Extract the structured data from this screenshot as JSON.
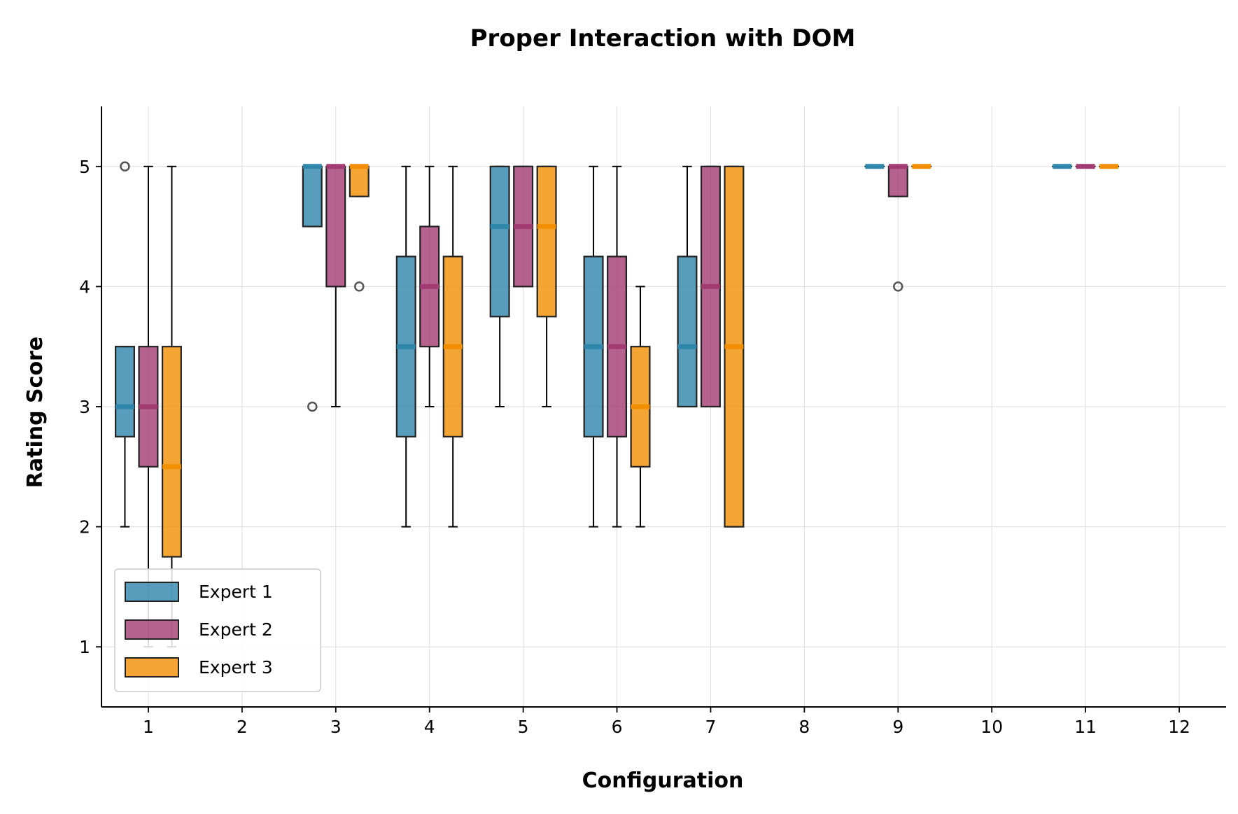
{
  "chart_data": {
    "type": "box",
    "title": "Proper Interaction with DOM",
    "xlabel": "Configuration",
    "ylabel": "Rating Score",
    "ylim": [
      0.5,
      5.5
    ],
    "xlim": [
      0.5,
      12.5
    ],
    "grid": true,
    "legend_position": "lower-left",
    "categories": [
      "1",
      "2",
      "3",
      "4",
      "5",
      "6",
      "7",
      "8",
      "9",
      "10",
      "11",
      "12"
    ],
    "yticks": [
      "1",
      "2",
      "3",
      "4",
      "5"
    ],
    "series": [
      {
        "name": "Expert 1",
        "color": "#2E86AB",
        "boxes": [
          {
            "config": 1,
            "whislo": 2,
            "q1": 2.75,
            "med": 3,
            "q3": 3.5,
            "whishi": 3.5,
            "fliers": [
              5
            ]
          },
          {
            "config": 3,
            "whislo": 4.5,
            "q1": 4.5,
            "med": 5,
            "q3": 5,
            "whishi": 5,
            "fliers": [
              3
            ]
          },
          {
            "config": 4,
            "whislo": 2,
            "q1": 2.75,
            "med": 3.5,
            "q3": 4.25,
            "whishi": 5,
            "fliers": []
          },
          {
            "config": 5,
            "whislo": 3,
            "q1": 3.75,
            "med": 4.5,
            "q3": 5,
            "whishi": 5,
            "fliers": []
          },
          {
            "config": 6,
            "whislo": 2,
            "q1": 2.75,
            "med": 3.5,
            "q3": 4.25,
            "whishi": 5,
            "fliers": []
          },
          {
            "config": 7,
            "whislo": 3,
            "q1": 3,
            "med": 3.5,
            "q3": 4.25,
            "whishi": 5,
            "fliers": []
          },
          {
            "config": 9,
            "whislo": 5,
            "q1": 5,
            "med": 5,
            "q3": 5,
            "whishi": 5,
            "fliers": []
          },
          {
            "config": 11,
            "whislo": 5,
            "q1": 5,
            "med": 5,
            "q3": 5,
            "whishi": 5,
            "fliers": []
          }
        ]
      },
      {
        "name": "Expert 2",
        "color": "#A23B72",
        "boxes": [
          {
            "config": 1,
            "whislo": 1,
            "q1": 2.5,
            "med": 3,
            "q3": 3.5,
            "whishi": 5,
            "fliers": []
          },
          {
            "config": 3,
            "whislo": 3,
            "q1": 4,
            "med": 5,
            "q3": 5,
            "whishi": 5,
            "fliers": []
          },
          {
            "config": 4,
            "whislo": 3,
            "q1": 3.5,
            "med": 4,
            "q3": 4.5,
            "whishi": 5,
            "fliers": []
          },
          {
            "config": 5,
            "whislo": 4,
            "q1": 4,
            "med": 4.5,
            "q3": 5,
            "whishi": 5,
            "fliers": []
          },
          {
            "config": 6,
            "whislo": 2,
            "q1": 2.75,
            "med": 3.5,
            "q3": 4.25,
            "whishi": 5,
            "fliers": []
          },
          {
            "config": 7,
            "whislo": 3,
            "q1": 3,
            "med": 4,
            "q3": 5,
            "whishi": 5,
            "fliers": []
          },
          {
            "config": 9,
            "whislo": 4.75,
            "q1": 4.75,
            "med": 5,
            "q3": 5,
            "whishi": 5,
            "fliers": [
              4
            ]
          },
          {
            "config": 11,
            "whislo": 5,
            "q1": 5,
            "med": 5,
            "q3": 5,
            "whishi": 5,
            "fliers": []
          }
        ]
      },
      {
        "name": "Expert 3",
        "color": "#F18F01",
        "boxes": [
          {
            "config": 1,
            "whislo": 1,
            "q1": 1.75,
            "med": 2.5,
            "q3": 3.5,
            "whishi": 5,
            "fliers": []
          },
          {
            "config": 3,
            "whislo": 4.75,
            "q1": 4.75,
            "med": 5,
            "q3": 5,
            "whishi": 5,
            "fliers": [
              4
            ]
          },
          {
            "config": 4,
            "whislo": 2,
            "q1": 2.75,
            "med": 3.5,
            "q3": 4.25,
            "whishi": 5,
            "fliers": []
          },
          {
            "config": 5,
            "whislo": 3,
            "q1": 3.75,
            "med": 4.5,
            "q3": 5,
            "whishi": 5,
            "fliers": []
          },
          {
            "config": 6,
            "whislo": 2,
            "q1": 2.5,
            "med": 3,
            "q3": 3.5,
            "whishi": 4,
            "fliers": []
          },
          {
            "config": 7,
            "whislo": 2,
            "q1": 2,
            "med": 3.5,
            "q3": 5,
            "whishi": 5,
            "fliers": []
          },
          {
            "config": 9,
            "whislo": 5,
            "q1": 5,
            "med": 5,
            "q3": 5,
            "whishi": 5,
            "fliers": []
          },
          {
            "config": 11,
            "whislo": 5,
            "q1": 5,
            "med": 5,
            "q3": 5,
            "whishi": 5,
            "fliers": []
          }
        ]
      }
    ]
  }
}
